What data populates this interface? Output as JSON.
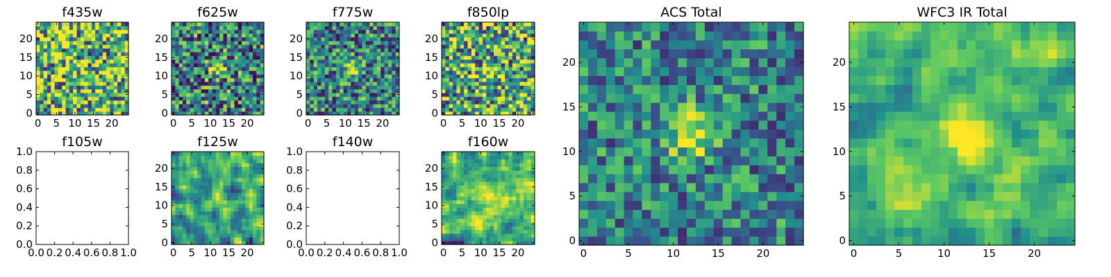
{
  "figure": {
    "background": "#ffffff",
    "colormap": [
      "#440154",
      "#3b528b",
      "#21908d",
      "#5dc962",
      "#fde725"
    ],
    "pixel_grid": 25
  },
  "chart_data": [
    {
      "type": "heatmap",
      "title": "f435w",
      "grid": 25,
      "xticks": [
        0,
        5,
        10,
        15,
        20
      ],
      "yticks": [
        0,
        5,
        10,
        15,
        20
      ],
      "empty": false,
      "seed": 11,
      "background": 0.68,
      "noise": 0.55,
      "source": null
    },
    {
      "type": "heatmap",
      "title": "f625w",
      "grid": 25,
      "xticks": [
        0,
        5,
        10,
        15,
        20
      ],
      "yticks": [
        0,
        5,
        10,
        15,
        20
      ],
      "empty": false,
      "seed": 23,
      "background": 0.45,
      "noise": 0.45,
      "source": {
        "x": 12,
        "y": 12,
        "amp": 0.5,
        "sigma": 1.6
      }
    },
    {
      "type": "heatmap",
      "title": "f775w",
      "grid": 25,
      "xticks": [
        0,
        5,
        10,
        15,
        20
      ],
      "yticks": [
        0,
        5,
        10,
        15,
        20
      ],
      "empty": false,
      "seed": 37,
      "background": 0.45,
      "noise": 0.4,
      "source": {
        "x": 12,
        "y": 12,
        "amp": 0.55,
        "sigma": 1.5
      }
    },
    {
      "type": "heatmap",
      "title": "f850lp",
      "grid": 25,
      "xticks": [
        0,
        5,
        10,
        15,
        20
      ],
      "yticks": [
        0,
        5,
        10,
        15,
        20
      ],
      "empty": false,
      "seed": 41,
      "background": 0.6,
      "noise": 0.5,
      "source": {
        "x": 13,
        "y": 11,
        "amp": 0.35,
        "sigma": 1.5
      }
    },
    {
      "type": "heatmap",
      "title": "ACS Total",
      "grid": 25,
      "xticks": [
        0,
        5,
        10,
        15,
        20
      ],
      "yticks": [
        0,
        5,
        10,
        15,
        20
      ],
      "empty": false,
      "seed": 53,
      "background": 0.45,
      "noise": 0.32,
      "source": {
        "x": 12,
        "y": 12,
        "amp": 0.55,
        "sigma": 1.8
      }
    },
    {
      "type": "heatmap",
      "title": "WFC3 IR Total",
      "grid": 25,
      "xticks": [
        0,
        5,
        10,
        15,
        20
      ],
      "yticks": [
        0,
        5,
        10,
        15,
        20
      ],
      "empty": false,
      "seed": 67,
      "background": 0.68,
      "noise": 0.3,
      "smooth": true,
      "source": {
        "x": 12,
        "y": 12,
        "amp": 0.35,
        "sigma": 2.2
      }
    },
    {
      "type": "empty",
      "title": "f105w",
      "xlim": [
        0,
        1
      ],
      "ylim": [
        0,
        1
      ],
      "xticks": [
        "0.0",
        "0.2",
        "0.4",
        "0.6",
        "0.8",
        "1.0"
      ],
      "yticks": [
        "0.0",
        "0.2",
        "0.4",
        "0.6",
        "0.8",
        "1.0"
      ],
      "empty": true
    },
    {
      "type": "heatmap",
      "title": "f125w",
      "grid": 25,
      "xticks": [
        0,
        5,
        10,
        15,
        20
      ],
      "yticks": [
        0,
        5,
        10,
        15,
        20
      ],
      "empty": false,
      "seed": 79,
      "background": 0.6,
      "noise": 0.45,
      "smooth": true,
      "source": {
        "x": 12,
        "y": 12,
        "amp": 0.3,
        "sigma": 1.6
      }
    },
    {
      "type": "empty",
      "title": "f140w",
      "xlim": [
        0,
        1
      ],
      "ylim": [
        0,
        1
      ],
      "xticks": [
        "0.0",
        "0.2",
        "0.4",
        "0.6",
        "0.8",
        "1.0"
      ],
      "yticks": [
        "0.0",
        "0.2",
        "0.4",
        "0.6",
        "0.8",
        "1.0"
      ],
      "empty": true
    },
    {
      "type": "heatmap",
      "title": "f160w",
      "grid": 25,
      "xticks": [
        0,
        5,
        10,
        15,
        20
      ],
      "yticks": [
        0,
        5,
        10,
        15,
        20
      ],
      "empty": false,
      "seed": 97,
      "background": 0.65,
      "noise": 0.4,
      "smooth": true,
      "source": {
        "x": 13,
        "y": 12,
        "amp": 0.3,
        "sigma": 2.0
      }
    }
  ]
}
